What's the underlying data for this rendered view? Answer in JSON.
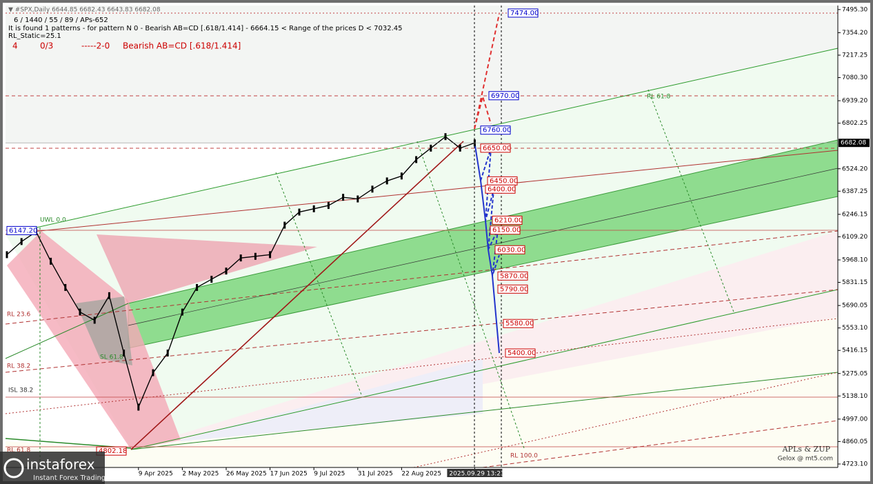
{
  "chart_data": {
    "type": "line",
    "title": "▼ #SPX,Daily  6644.85 6682.43 6643.83 6682.08",
    "subtitle": "6 / 1440 / 55 / 89 / APs-652",
    "annotations": [
      "It is found 1 patterns  -  for pattern N 0 - Bearish AB=CD [.618/1.414] - 6664.15 < Range of the prices D < 7032.45",
      "RL_Static=25.1"
    ],
    "pattern_line": [
      "4",
      "0/3",
      "-----2-0",
      "Bearish AB=CD [.618/1.414]"
    ],
    "fib_labels": [
      "UWL 0.0",
      "RL 23.6",
      "RL 38.2",
      "ISL 38.2",
      "RL 61.8",
      "RL 100.0",
      "SL 61.8",
      "RL 61.8"
    ],
    "credits": [
      "APLs & ZUP",
      "Gelox @ mt5.com"
    ],
    "logo": [
      "instaforex",
      "Instant Forex Trading"
    ],
    "categories": [
      null,
      null,
      null,
      null,
      null,
      null,
      null,
      null,
      null,
      "9 Apr 2025",
      null,
      null,
      "2 May 2025",
      null,
      null,
      "26 May 2025",
      null,
      null,
      "17 Jun 2025",
      null,
      null,
      "9 Jul 2025",
      null,
      null,
      "31 Jul 2025",
      null,
      null,
      "22 Aug 2025",
      null,
      null,
      null,
      null,
      "2025.09.29 13:23"
    ],
    "series": [
      {
        "name": "#SPX,Daily",
        "color": "#000000",
        "values": [
          6000,
          6080,
          6140,
          5960,
          5800,
          5650,
          5600,
          5750,
          5400,
          5070,
          5280,
          5400,
          5650,
          5800,
          5850,
          5900,
          5980,
          5990,
          6000,
          6180,
          6260,
          6280,
          6300,
          6350,
          6340,
          6400,
          6450,
          6480,
          6580,
          6650,
          6720,
          6650,
          6682
        ]
      }
    ],
    "levels": [
      {
        "value": 7474,
        "label": "7474.00",
        "color": "#0000cc"
      },
      {
        "value": 6970,
        "label": "6970.00",
        "color": "#0000cc"
      },
      {
        "value": 6760,
        "label": "6760.00",
        "color": "#0000cc"
      },
      {
        "value": 6650,
        "label": "6650.00",
        "color": "#cc0000"
      },
      {
        "value": 6450,
        "label": "6450.00",
        "color": "#cc0000"
      },
      {
        "value": 6400,
        "label": "6400.00",
        "color": "#cc0000"
      },
      {
        "value": 6210,
        "label": "6210.00",
        "color": "#cc0000"
      },
      {
        "value": 6150,
        "label": "6150.00",
        "color": "#cc0000"
      },
      {
        "value": 6030,
        "label": "6030.00",
        "color": "#cc0000"
      },
      {
        "value": 5870,
        "label": "5870.00",
        "color": "#cc0000"
      },
      {
        "value": 5790,
        "label": "5790.00",
        "color": "#cc0000"
      },
      {
        "value": 5580,
        "label": "5580.00",
        "color": "#cc0000"
      },
      {
        "value": 5400,
        "label": "5400.00",
        "color": "#cc0000"
      },
      {
        "value": 6147.2,
        "label": "6147.20",
        "color": "#0000cc"
      },
      {
        "value": 4802.18,
        "label": "4802.18",
        "color": "#cc0000"
      }
    ],
    "last_price": {
      "value": 6682.08,
      "label": "6682.08"
    },
    "ylim": [
      4702,
      7520
    ],
    "yticks": [
      {
        "value": 7495.3,
        "label": "7495.30"
      },
      {
        "value": 7354.2,
        "label": "7354.20"
      },
      {
        "value": 7217.25,
        "label": "7217.25"
      },
      {
        "value": 7080.3,
        "label": "7080.30"
      },
      {
        "value": 6939.2,
        "label": "6939.20"
      },
      {
        "value": 6802.25,
        "label": "6802.25"
      },
      {
        "value": 6524.2,
        "label": "6524.20"
      },
      {
        "value": 6387.25,
        "label": "6387.25"
      },
      {
        "value": 6246.15,
        "label": "6246.15"
      },
      {
        "value": 6109.2,
        "label": "6109.20"
      },
      {
        "value": 5968.1,
        "label": "5968.10"
      },
      {
        "value": 5831.15,
        "label": "5831.15"
      },
      {
        "value": 5690.05,
        "label": "5690.05"
      },
      {
        "value": 5553.1,
        "label": "5553.10"
      },
      {
        "value": 5416.15,
        "label": "5416.15"
      },
      {
        "value": 5275.05,
        "label": "5275.05"
      },
      {
        "value": 5138.1,
        "label": "5138.10"
      },
      {
        "value": 4997,
        "label": "4997.00"
      },
      {
        "value": 4860.05,
        "label": "4860.05"
      },
      {
        "value": 4723.1,
        "label": "4723.10"
      }
    ]
  }
}
